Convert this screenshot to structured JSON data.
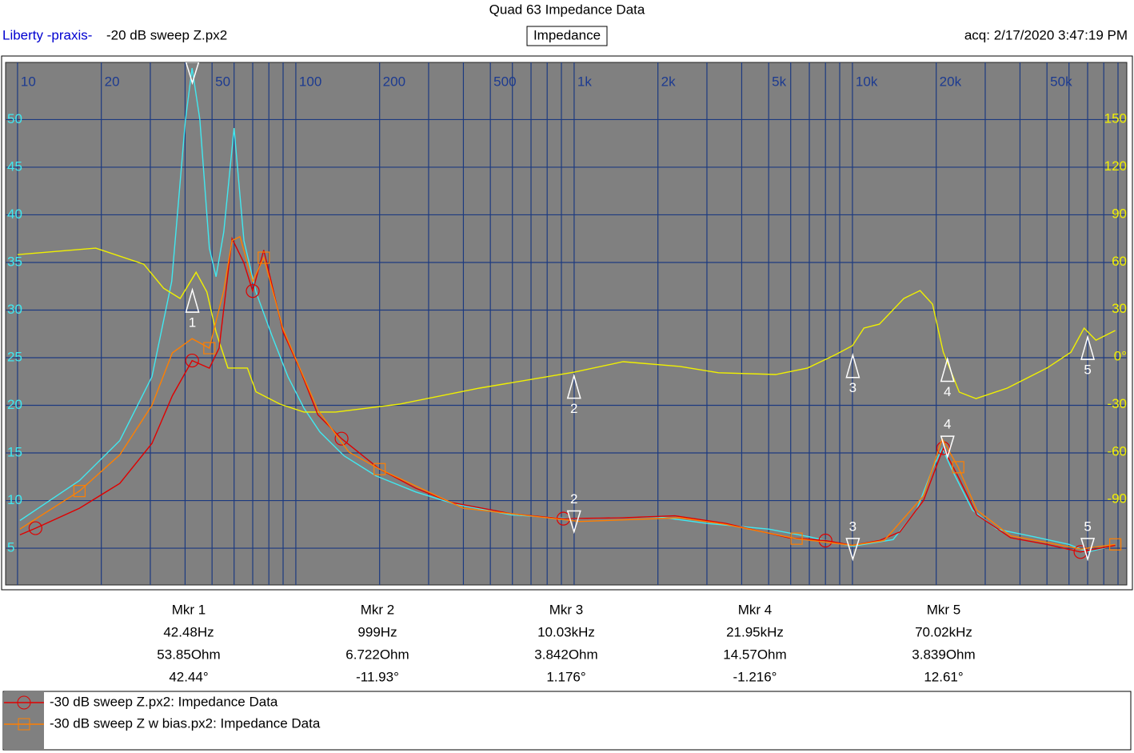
{
  "header": {
    "brand": "Liberty -praxis-",
    "file": "-20 dB sweep Z.px2",
    "mode": "Impedance",
    "acq": "acq: 2/17/2020 3:47:19 PM"
  },
  "chart_data": {
    "type": "line",
    "title": "Quad 63 Impedance Data",
    "log_x": true,
    "grid": true,
    "xlim": [
      9.06,
      90000
    ],
    "xticks": [
      10,
      20,
      50,
      100,
      200,
      500,
      {
        "value": 1000,
        "label": "1k"
      },
      {
        "value": 2000,
        "label": "2k"
      },
      {
        "value": 5000,
        "label": "5k"
      },
      {
        "value": 10000,
        "label": "10k"
      },
      {
        "value": 20000,
        "label": "20k"
      },
      {
        "value": 50000,
        "label": "50k"
      }
    ],
    "xgrid": [
      10,
      20,
      30,
      40,
      50,
      60,
      70,
      80,
      90,
      100,
      200,
      300,
      400,
      500,
      600,
      700,
      800,
      900,
      1000,
      2000,
      3000,
      4000,
      5000,
      6000,
      7000,
      8000,
      9000,
      10000,
      20000,
      30000,
      40000,
      50000,
      60000,
      70000,
      80000,
      90000
    ],
    "ylim": [
      1.14,
      56
    ],
    "yticks": [
      5,
      10,
      15,
      20,
      25,
      30,
      35,
      40,
      45,
      50
    ],
    "y2lim": [
      -144,
      186
    ],
    "y2ticks": [
      -90,
      -60,
      -30,
      {
        "value": 0,
        "label": "0°"
      },
      30,
      60,
      90,
      120,
      150
    ],
    "series": [
      {
        "color": "#40e8f0",
        "x": [
          10.2,
          16.7,
          23.3,
          30.4,
          35.8,
          40.1,
          42.4,
          45.2,
          48.9,
          51.7,
          55.1,
          60,
          65.1,
          71.9,
          82.1,
          93.7,
          107,
          122,
          149,
          194,
          270,
          376,
          595,
          1000,
          2000,
          3000,
          5000,
          7000,
          10000,
          14000,
          17000,
          19500,
          21000,
          23000,
          27000,
          33000,
          45000,
          60000,
          70000,
          85000
        ],
        "values": [
          7.9,
          12.1,
          16.3,
          23,
          33,
          49.9,
          55.4,
          50,
          36.5,
          33.5,
          38.2,
          49.1,
          37.3,
          31.9,
          27.3,
          23,
          19.7,
          17.2,
          14.7,
          12.6,
          10.9,
          9.6,
          8.5,
          8.1,
          8.3,
          7.6,
          7.0,
          6.2,
          5.2,
          5.9,
          9,
          13.5,
          15.5,
          13,
          9,
          7,
          6.2,
          5.4,
          4.6,
          5.2
        ]
      },
      {
        "color": "#f0f000",
        "axis": "y2",
        "x": [
          10,
          19.1,
          28.4,
          33.5,
          38.4,
          43.8,
          47.9,
          51.7,
          57,
          67,
          71.9,
          87.7,
          107,
          139,
          236,
          457,
          1000,
          1500,
          2400,
          3300,
          5300,
          6900,
          8700,
          10000,
          11000,
          12500,
          15300,
          17500,
          19400,
          21200,
          24200,
          27800,
          36000,
          50000,
          61000,
          68000,
          75000,
          88000
        ],
        "values": [
          64.6,
          68.7,
          58.6,
          43.4,
          36.9,
          53.5,
          41,
          15.7,
          -7,
          -7,
          -22,
          -29.8,
          -34.8,
          -34.8,
          -29.8,
          -19.7,
          -9.6,
          -3,
          -6,
          -10,
          -11.1,
          -7,
          1.5,
          7.1,
          18.2,
          20.7,
          36.9,
          41.9,
          33.3,
          3,
          -22.2,
          -26.3,
          -19.7,
          -7,
          3,
          18.2,
          10.6,
          16.7
        ]
      },
      {
        "name": "-30 dB sweep Z.px2:  Impedance Data",
        "color": "#e00000",
        "marker": "circle",
        "x": [
          10.2,
          11.6,
          16.7,
          23.3,
          30.4,
          36,
          42.4,
          48.9,
          53,
          59,
          65,
          70,
          76.7,
          90,
          103,
          120,
          146,
          200,
          270,
          362,
          600,
          915,
          1500,
          2300,
          3500,
          5900,
          8000,
          10000,
          12500,
          14800,
          18000,
          21200,
          24000,
          28000,
          37000,
          50000,
          66000,
          88000
        ],
        "values": [
          6.4,
          7.1,
          9.2,
          11.8,
          16,
          21,
          24.7,
          23.9,
          26,
          37.5,
          35,
          32,
          36.3,
          27.7,
          23.9,
          19,
          16.5,
          13.3,
          11.3,
          9.8,
          8.6,
          8.1,
          8.2,
          8.4,
          7.6,
          6.1,
          5.8,
          5.3,
          5.8,
          6.7,
          10,
          15.5,
          12.5,
          8.5,
          6.1,
          5.4,
          4.6,
          5.3
        ]
      },
      {
        "name": "-30 dB sweep Z w bias.px2:  Impedance Data",
        "color": "#ff7f00",
        "marker": "square",
        "x": [
          10.2,
          16.7,
          23.3,
          30.4,
          36,
          42.4,
          48.9,
          55,
          59,
          63,
          70,
          76.7,
          90,
          103,
          120,
          155,
          200,
          400,
          1050,
          2400,
          3500,
          6300,
          10000,
          13000,
          18000,
          21000,
          24000,
          28000,
          37000,
          50000,
          66000,
          88000
        ],
        "values": [
          7.0,
          11,
          14.8,
          20,
          25.5,
          27,
          26,
          32,
          37.3,
          37.7,
          33,
          35.5,
          28,
          24,
          19.5,
          15.1,
          13.3,
          9.2,
          7.8,
          8.2,
          7.5,
          6.0,
          5.3,
          5.8,
          10.5,
          16.5,
          13.5,
          9,
          6.3,
          5.6,
          4.9,
          5.4
        ]
      }
    ],
    "markers": [
      {
        "name": "Mkr 1",
        "id": "1",
        "x": 42.48,
        "x_label": "42.48Hz",
        "z": 53.85,
        "z_label": "53.85Ohm",
        "phase": 42.44,
        "phase_label": "42.44°"
      },
      {
        "name": "Mkr 2",
        "id": "2",
        "x": 999,
        "x_label": "999Hz",
        "z": 6.722,
        "z_label": "6.722Ohm",
        "phase": -11.93,
        "phase_label": "-11.93°"
      },
      {
        "name": "Mkr 3",
        "id": "3",
        "x": 10030,
        "x_label": "10.03kHz",
        "z": 3.842,
        "z_label": "3.842Ohm",
        "phase": 1.176,
        "phase_label": "1.176°"
      },
      {
        "name": "Mkr 4",
        "id": "4",
        "x": 21950,
        "x_label": "21.95kHz",
        "z": 14.57,
        "z_label": "14.57Ohm",
        "phase": -1.216,
        "phase_label": "-1.216°"
      },
      {
        "name": "Mkr 5",
        "id": "5",
        "x": 70020,
        "x_label": "70.02kHz",
        "z": 3.839,
        "z_label": "3.839Ohm",
        "phase": 12.61,
        "phase_label": "12.61°"
      }
    ]
  }
}
